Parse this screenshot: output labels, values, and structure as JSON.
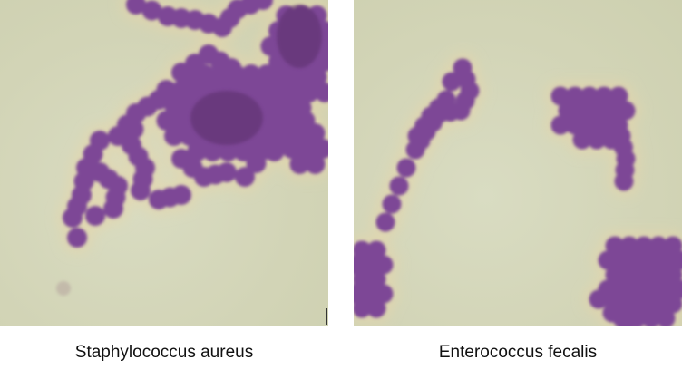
{
  "panels": [
    {
      "caption": "Staphylococcus aureus",
      "stain_color": "#7d4796"
    },
    {
      "caption": "Enterococcus fecalis",
      "stain_color": "#7d4796"
    }
  ]
}
